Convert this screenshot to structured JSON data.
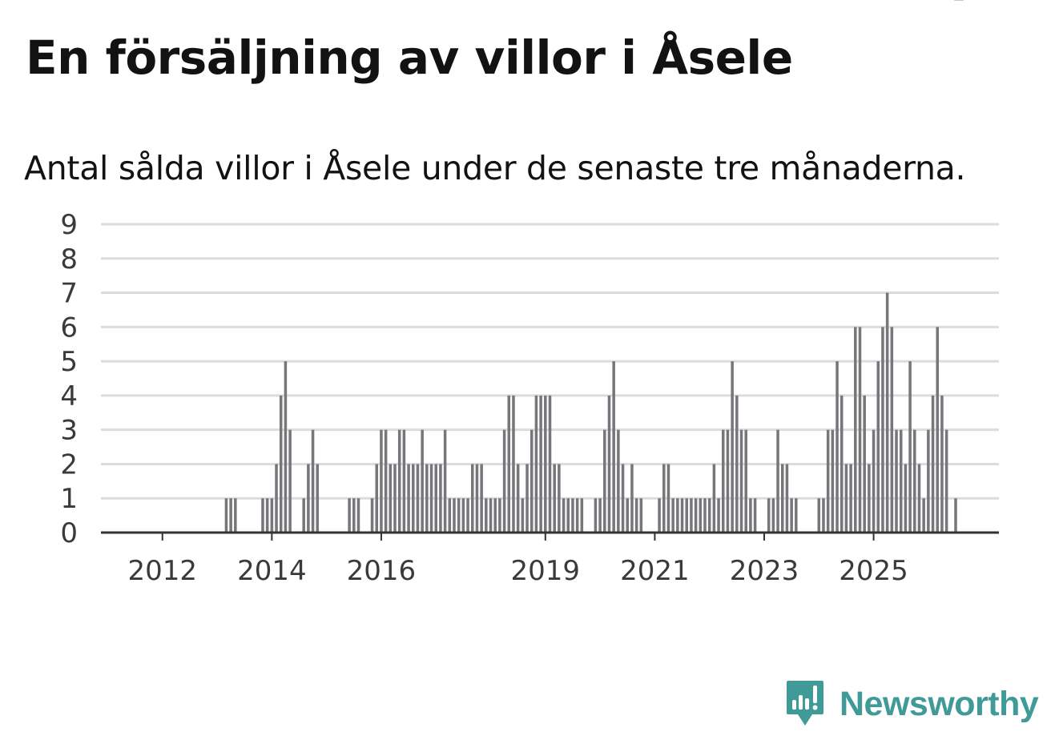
{
  "title": "En försäljning av villor i Åsele",
  "subtitle": "Antal sålda villor i Åsele under de senaste tre månaderna.",
  "brand": {
    "name": "Newsworthy",
    "icon": "newsworthy-logo-icon",
    "color": "#3f9a98"
  },
  "colors": {
    "bar": "#77767b",
    "highlight": "#1a9e94",
    "grid": "#dcdcdc",
    "axis": "#333333",
    "text": "#3a3a3a"
  },
  "chart_data": {
    "type": "bar",
    "title": "En försäljning av villor i Åsele",
    "xlabel": "",
    "ylabel": "",
    "ylim": [
      0,
      9
    ],
    "yticks": [
      "0",
      "1",
      "2",
      "3",
      "4",
      "5",
      "6",
      "7",
      "8",
      "9"
    ],
    "xticks": [
      {
        "label": "2012",
        "index": 4
      },
      {
        "label": "2014",
        "index": 28
      },
      {
        "label": "2016",
        "index": 52
      },
      {
        "label": "2019",
        "index": 88
      },
      {
        "label": "2021",
        "index": 112
      },
      {
        "label": "2023",
        "index": 136
      },
      {
        "label": "2025",
        "index": 160
      }
    ],
    "series_name": "Antal sålda villor",
    "values": [
      0,
      0,
      0,
      0,
      0,
      0,
      0,
      0,
      0,
      0,
      0,
      0,
      0,
      0,
      0,
      0,
      0,
      0,
      1,
      1,
      1,
      0,
      0,
      0,
      0,
      0,
      1,
      1,
      1,
      2,
      4,
      5,
      3,
      0,
      0,
      1,
      2,
      3,
      2,
      0,
      0,
      0,
      0,
      0,
      0,
      1,
      1,
      1,
      0,
      0,
      1,
      2,
      3,
      3,
      2,
      2,
      3,
      3,
      2,
      2,
      2,
      3,
      2,
      2,
      2,
      2,
      3,
      1,
      1,
      1,
      1,
      1,
      2,
      2,
      2,
      1,
      1,
      1,
      1,
      3,
      4,
      4,
      2,
      1,
      2,
      3,
      4,
      4,
      4,
      4,
      2,
      2,
      1,
      1,
      1,
      1,
      1,
      0,
      0,
      1,
      1,
      3,
      4,
      5,
      3,
      2,
      1,
      2,
      1,
      1,
      0,
      0,
      0,
      1,
      2,
      2,
      1,
      1,
      1,
      1,
      1,
      1,
      1,
      1,
      1,
      2,
      1,
      3,
      3,
      5,
      4,
      3,
      3,
      1,
      1,
      0,
      0,
      1,
      1,
      3,
      2,
      2,
      1,
      1,
      0,
      0,
      0,
      0,
      1,
      1,
      3,
      3,
      5,
      4,
      2,
      2,
      6,
      6,
      4,
      2,
      3,
      5,
      6,
      7,
      6,
      3,
      3,
      2,
      5,
      3,
      2,
      1,
      3,
      4,
      6,
      4,
      3,
      0,
      1
    ],
    "highlight_index": 179,
    "highlight_label": "1"
  }
}
